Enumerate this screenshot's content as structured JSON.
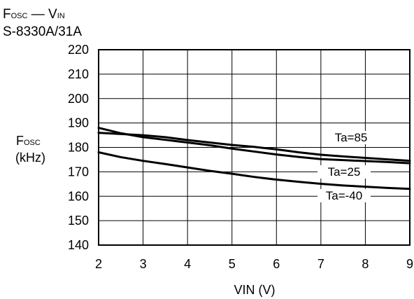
{
  "header": {
    "title_main": "F",
    "title_main_sub": "OSC",
    "title_dash": " — ",
    "title_var": "V",
    "title_var_sub": "IN",
    "part_number": "S-8330A/31A"
  },
  "chart_data": {
    "type": "line",
    "xlabel": "VIN (V)",
    "ylabel_main": "F",
    "ylabel_sub": "OSC",
    "ylabel_unit": "(kHz)",
    "xlim": [
      2,
      9
    ],
    "ylim": [
      140,
      220
    ],
    "xticks": [
      2,
      3,
      4,
      5,
      6,
      7,
      8,
      9
    ],
    "yticks": [
      140,
      150,
      160,
      170,
      180,
      190,
      200,
      210,
      220
    ],
    "grid": true,
    "series": [
      {
        "name": "Ta=85",
        "x": [
          2,
          2.5,
          3,
          3.5,
          4,
          4.5,
          5,
          5.5,
          6,
          6.5,
          7,
          7.5,
          8,
          8.5,
          9
        ],
        "y": [
          186,
          185.5,
          185,
          184.2,
          183,
          182,
          181,
          180.2,
          179.2,
          178,
          177,
          176.3,
          175.7,
          175.1,
          174.5
        ]
      },
      {
        "name": "Ta=25",
        "x": [
          2,
          2.5,
          3,
          3.5,
          4,
          4.5,
          5,
          5.5,
          6,
          6.5,
          7,
          7.5,
          8,
          8.5,
          9
        ],
        "y": [
          188,
          185.8,
          184.2,
          183.1,
          182,
          180.9,
          179.5,
          178.3,
          177.1,
          176.1,
          175.2,
          174.8,
          174.4,
          174,
          173.5
        ]
      },
      {
        "name": "Ta=-40",
        "x": [
          2,
          2.5,
          3,
          3.5,
          4,
          4.5,
          5,
          5.5,
          6,
          6.5,
          7,
          7.5,
          8,
          8.5,
          9
        ],
        "y": [
          178,
          176,
          174.5,
          173.2,
          171.8,
          170.4,
          169.2,
          167.9,
          166.8,
          165.9,
          165.1,
          164.4,
          163.9,
          163.4,
          163
        ]
      }
    ]
  }
}
